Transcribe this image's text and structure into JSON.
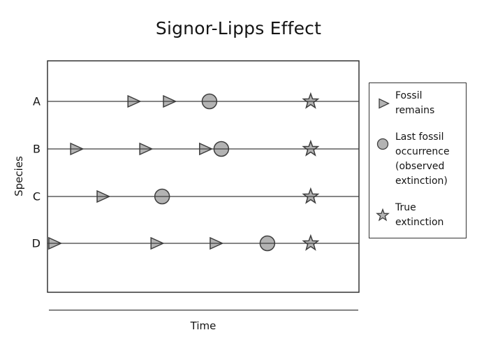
{
  "chart_data": {
    "type": "scatter",
    "title": "Signor-Lipps Effect",
    "xlabel": "Time",
    "ylabel": "Species",
    "xlim": [
      0,
      10
    ],
    "x_tick_labels": [],
    "y_tick_labels": [
      "A",
      "B",
      "C",
      "D"
    ],
    "grid": false,
    "species": [
      "A",
      "B",
      "C",
      "D"
    ],
    "series": [
      {
        "name": "A",
        "fossil_occurrences": [
          2.74,
          3.88
        ],
        "last_fossil_occurrence": 5.2,
        "true_extinction": 8.45
      },
      {
        "name": "B",
        "fossil_occurrences": [
          0.9,
          3.12,
          5.04
        ],
        "last_fossil_occurrence": 5.58,
        "true_extinction": 8.45
      },
      {
        "name": "C",
        "fossil_occurrences": [
          1.75
        ],
        "last_fossil_occurrence": 3.68,
        "true_extinction": 8.45
      },
      {
        "name": "D",
        "fossil_occurrences": [
          0.2,
          3.48,
          5.38
        ],
        "last_fossil_occurrence": 7.06,
        "true_extinction": 8.45
      }
    ],
    "legend": {
      "position": "right",
      "entries": [
        {
          "marker": "triangle-right",
          "label": "Fossil remains"
        },
        {
          "marker": "circle",
          "label": "Last fossil occurrence (observed extinction)"
        },
        {
          "marker": "star",
          "label": "True extinction"
        }
      ]
    },
    "colors": {
      "marker_fill": "#b3b3b3",
      "marker_edge": "#3d3d3d",
      "line": "#3d3d3d",
      "frame": "#262626"
    }
  }
}
